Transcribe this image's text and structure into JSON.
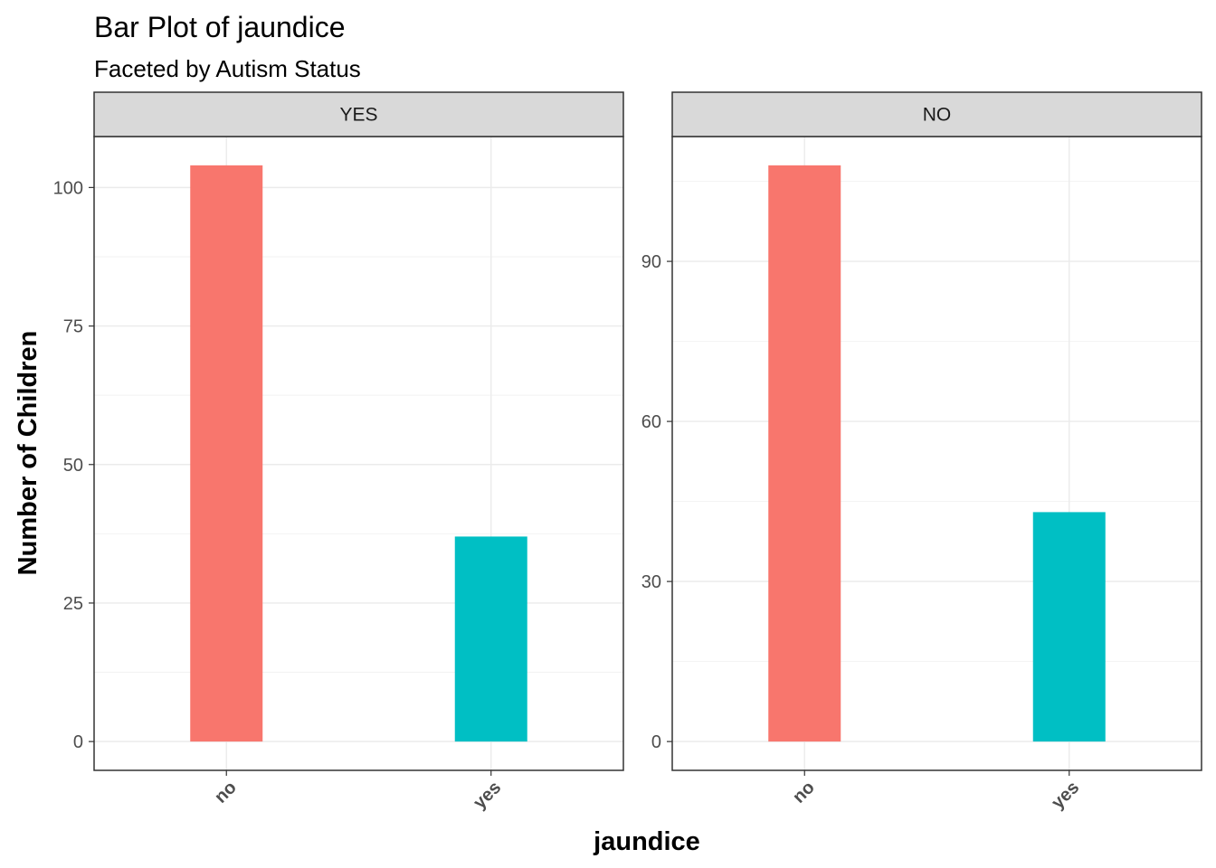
{
  "chart_data": {
    "type": "bar",
    "title": "Bar Plot of jaundice",
    "subtitle": "Faceted by Autism Status",
    "xlabel": "jaundice",
    "ylabel": "Number of Children",
    "categories": [
      "no",
      "yes"
    ],
    "colors": {
      "no": "#F8766D",
      "yes": "#00BFC4"
    },
    "grid": true,
    "facet_scales": "free_y",
    "facets": [
      {
        "label": "YES",
        "values": [
          104,
          37
        ],
        "ylim": [
          -5.2,
          109.2
        ],
        "yticks": [
          0,
          25,
          50,
          75,
          100
        ]
      },
      {
        "label": "NO",
        "values": [
          108,
          43
        ],
        "ylim": [
          -5.4,
          113.4
        ],
        "yticks": [
          0,
          30,
          60,
          90
        ]
      }
    ]
  }
}
